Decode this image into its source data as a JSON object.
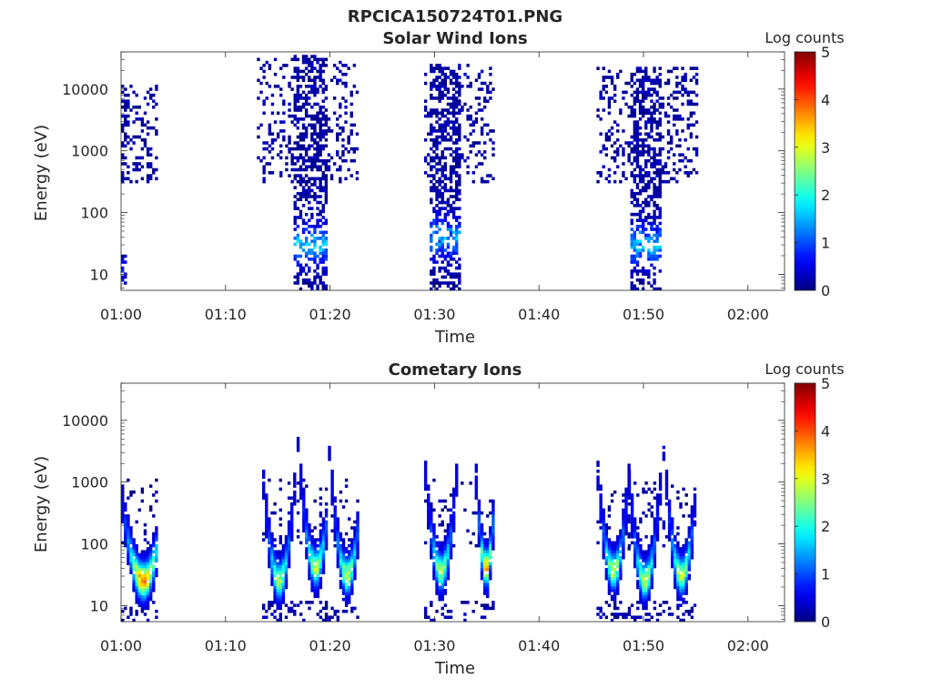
{
  "figure": {
    "title": "RPCICA150724T01.PNG"
  },
  "chart_data": [
    {
      "type": "heatmap",
      "title": "Solar Wind Ions",
      "xlabel": "Time",
      "ylabel": "Energy (eV)",
      "x_ticks": [
        "01:00",
        "01:10",
        "01:20",
        "01:30",
        "01:40",
        "01:50",
        "02:00"
      ],
      "x_tick_minutes": [
        0,
        10,
        20,
        30,
        40,
        50,
        60
      ],
      "xlim_minutes": [
        0,
        63.5
      ],
      "y_scale": "log",
      "y_ticks": [
        "10",
        "100",
        "1000",
        "10000"
      ],
      "y_tick_values": [
        10,
        100,
        1000,
        10000
      ],
      "ylim": [
        5.5,
        40000
      ],
      "colorbar": {
        "title": "Log counts",
        "ticks": [
          "0",
          "1",
          "2",
          "3",
          "4",
          "5"
        ],
        "range": [
          0,
          5
        ],
        "colormap": "jet"
      },
      "bursts": [
        {
          "start_min": 0.0,
          "end_min": 3.5,
          "dense_end_min": 0.3,
          "e_min": 300,
          "e_max": 12000,
          "sparse_floor": 6,
          "peak_log": 0.6,
          "peak_energy": 10,
          "peak_width": 0.6
        },
        {
          "start_min": 13.0,
          "end_min": 22.5,
          "dense_start_min": 16.5,
          "dense_end_min": 19.5,
          "e_min": 300,
          "e_max": 35000,
          "low_floor": 6,
          "peak_log": 1.8,
          "peak_energy": 30,
          "peak_width": 0.4
        },
        {
          "start_min": 29.0,
          "end_min": 35.5,
          "dense_start_min": 29.5,
          "dense_end_min": 32.5,
          "e_min": 300,
          "e_max": 25000,
          "low_floor": 6,
          "peak_log": 1.6,
          "peak_energy": 40,
          "peak_width": 0.4
        },
        {
          "start_min": 45.5,
          "end_min": 55.0,
          "dense_start_min": 48.5,
          "dense_end_min": 51.5,
          "e_min": 300,
          "e_max": 22000,
          "low_floor": 6,
          "peak_log": 1.7,
          "peak_energy": 30,
          "peak_width": 0.4
        }
      ]
    },
    {
      "type": "heatmap",
      "title": "Cometary Ions",
      "xlabel": "Time",
      "ylabel": "Energy (eV)",
      "x_ticks": [
        "01:00",
        "01:10",
        "01:20",
        "01:30",
        "01:40",
        "01:50",
        "02:00"
      ],
      "x_tick_minutes": [
        0,
        10,
        20,
        30,
        40,
        50,
        60
      ],
      "xlim_minutes": [
        0,
        63.5
      ],
      "y_scale": "log",
      "y_ticks": [
        "10",
        "100",
        "1000",
        "10000"
      ],
      "y_tick_values": [
        10,
        100,
        1000,
        10000
      ],
      "ylim": [
        5.5,
        40000
      ],
      "colorbar": {
        "title": "Log counts",
        "ticks": [
          "0",
          "1",
          "2",
          "3",
          "4",
          "5"
        ],
        "range": [
          0,
          5
        ],
        "colormap": "jet"
      },
      "bursts": [
        {
          "center_min": 2.0,
          "start_min": 0.0,
          "end_min": 3.5,
          "peak_energy": 25,
          "peak_log": 3.9,
          "spread_min": 0.9
        },
        {
          "center_min": 15.0,
          "start_min": 13.5,
          "end_min": 16.5,
          "peak_energy": 25,
          "peak_log": 2.8,
          "spread_min": 0.6
        },
        {
          "center_min": 18.5,
          "start_min": 16.8,
          "end_min": 19.5,
          "peak_energy": 40,
          "peak_log": 2.9,
          "spread_min": 0.6
        },
        {
          "center_min": 21.5,
          "start_min": 19.8,
          "end_min": 22.5,
          "peak_energy": 30,
          "peak_log": 2.9,
          "spread_min": 0.6
        },
        {
          "center_min": 30.5,
          "start_min": 29.0,
          "end_min": 32.0,
          "peak_energy": 35,
          "peak_log": 2.8,
          "spread_min": 0.6
        },
        {
          "center_min": 34.8,
          "start_min": 32.5,
          "end_min": 35.5,
          "peak_energy": 40,
          "peak_log": 3.7,
          "spread_min": 0.4
        },
        {
          "center_min": 47.0,
          "start_min": 45.5,
          "end_min": 48.5,
          "peak_energy": 35,
          "peak_log": 2.9,
          "spread_min": 0.6
        },
        {
          "center_min": 50.0,
          "start_min": 48.5,
          "end_min": 51.5,
          "peak_energy": 25,
          "peak_log": 2.9,
          "spread_min": 0.6
        },
        {
          "center_min": 53.5,
          "start_min": 51.8,
          "end_min": 55.0,
          "peak_energy": 30,
          "peak_log": 3.0,
          "spread_min": 0.6
        }
      ]
    }
  ]
}
